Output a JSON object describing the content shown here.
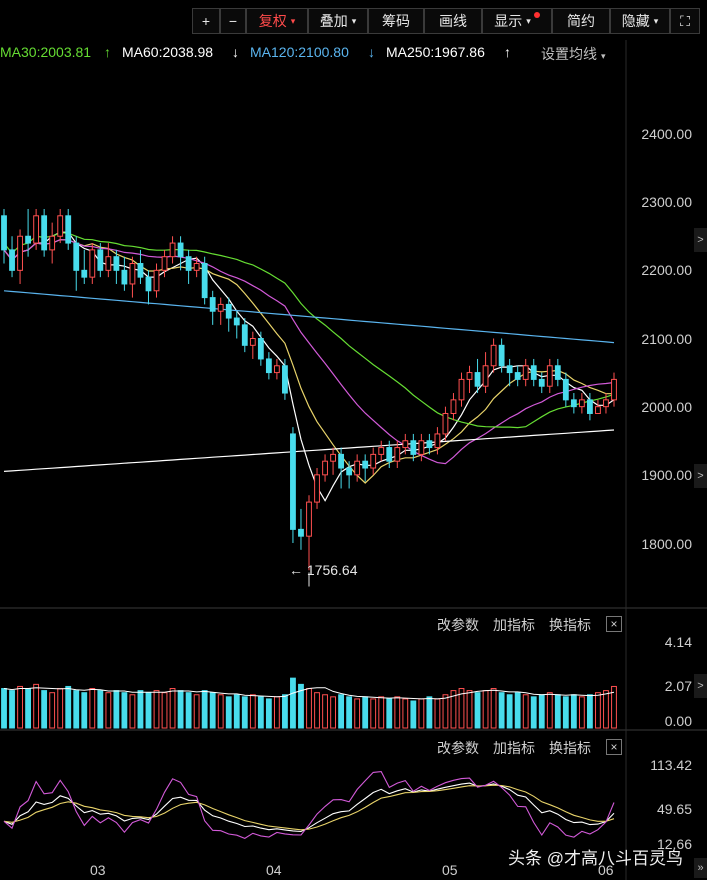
{
  "toolbar": {
    "zoom_in": "+",
    "zoom_out": "−",
    "fuquan": "复权",
    "diejia": "叠加",
    "chouma": "筹码",
    "huaxian": "画线",
    "xianshi": "显示",
    "jianyue": "简约",
    "yincang": "隐藏",
    "fullscreen": "⛶",
    "active_color": "#ff4b4b",
    "caret": "▾"
  },
  "ma_legend": {
    "ma30": "MA30:2003.81",
    "ma30_arrow": "↑",
    "ma60": "MA60:2038.98",
    "ma60_arrow": "↓",
    "ma120": "MA120:2100.80",
    "ma120_arrow": "↓",
    "ma250": "MA250:1967.86",
    "ma250_arrow": "↑",
    "settings": "设置均线",
    "colors": {
      "ma30": "#66dd33",
      "ma60": "#ffffff",
      "ma120": "#5ab4ee",
      "ma250": "#ffffff"
    }
  },
  "price_axis": [
    "2400.00",
    "2300.00",
    "2200.00",
    "2100.00",
    "2000.00",
    "1900.00",
    "1800.00"
  ],
  "low_label": "1756.64",
  "volume_panel": {
    "btn_params": "改参数",
    "btn_add": "加指标",
    "btn_switch": "换指标",
    "close": "×",
    "axis": [
      "4.14",
      "2.07",
      "0.00"
    ]
  },
  "indicator_panel": {
    "btn_params": "改参数",
    "btn_add": "加指标",
    "btn_switch": "换指标",
    "close": "×",
    "axis": [
      "113.42",
      "49.65",
      "12.66"
    ]
  },
  "months": [
    "03",
    "04",
    "05",
    "06"
  ],
  "watermark": "头条 @才高八斗百灵鸟",
  "side_arrows": {
    "main": ">",
    "volume": ">",
    "bottom": "»"
  },
  "chart_data": {
    "type": "candlestick",
    "price_range": [
      1700,
      2450
    ],
    "low_marker": 1756.64,
    "up_color": "#ff5050",
    "down_color": "#48dcec",
    "candles": [
      [
        2280,
        2230,
        2290,
        2210
      ],
      [
        2230,
        2200,
        2250,
        2190
      ],
      [
        2200,
        2250,
        2260,
        2180
      ],
      [
        2250,
        2240,
        2290,
        2220
      ],
      [
        2240,
        2280,
        2290,
        2230
      ],
      [
        2280,
        2230,
        2290,
        2220
      ],
      [
        2230,
        2250,
        2270,
        2210
      ],
      [
        2250,
        2280,
        2290,
        2240
      ],
      [
        2280,
        2240,
        2290,
        2230
      ],
      [
        2240,
        2200,
        2250,
        2170
      ],
      [
        2200,
        2190,
        2230,
        2180
      ],
      [
        2190,
        2230,
        2240,
        2180
      ],
      [
        2230,
        2200,
        2240,
        2190
      ],
      [
        2200,
        2220,
        2240,
        2190
      ],
      [
        2220,
        2200,
        2230,
        2180
      ],
      [
        2200,
        2180,
        2220,
        2170
      ],
      [
        2180,
        2210,
        2220,
        2160
      ],
      [
        2210,
        2190,
        2230,
        2180
      ],
      [
        2190,
        2170,
        2200,
        2150
      ],
      [
        2170,
        2200,
        2210,
        2160
      ],
      [
        2200,
        2220,
        2230,
        2190
      ],
      [
        2220,
        2240,
        2250,
        2210
      ],
      [
        2240,
        2220,
        2250,
        2200
      ],
      [
        2220,
        2200,
        2230,
        2180
      ],
      [
        2200,
        2210,
        2220,
        2190
      ],
      [
        2210,
        2160,
        2220,
        2150
      ],
      [
        2160,
        2140,
        2170,
        2120
      ],
      [
        2140,
        2150,
        2160,
        2120
      ],
      [
        2150,
        2130,
        2160,
        2110
      ],
      [
        2130,
        2120,
        2140,
        2100
      ],
      [
        2120,
        2090,
        2130,
        2080
      ],
      [
        2090,
        2100,
        2110,
        2070
      ],
      [
        2100,
        2070,
        2110,
        2060
      ],
      [
        2070,
        2050,
        2080,
        2040
      ],
      [
        2050,
        2060,
        2070,
        2040
      ],
      [
        2060,
        2020,
        2070,
        2010
      ],
      [
        1960,
        1820,
        1970,
        1800
      ],
      [
        1820,
        1810,
        1850,
        1790
      ],
      [
        1810,
        1860,
        1870,
        1760
      ],
      [
        1860,
        1900,
        1910,
        1850
      ],
      [
        1900,
        1920,
        1930,
        1890
      ],
      [
        1920,
        1930,
        1940,
        1900
      ],
      [
        1930,
        1910,
        1940,
        1880
      ],
      [
        1910,
        1900,
        1920,
        1880
      ],
      [
        1900,
        1920,
        1930,
        1890
      ],
      [
        1920,
        1910,
        1930,
        1890
      ],
      [
        1910,
        1930,
        1940,
        1900
      ],
      [
        1930,
        1940,
        1950,
        1920
      ],
      [
        1940,
        1920,
        1950,
        1910
      ],
      [
        1920,
        1940,
        1950,
        1910
      ],
      [
        1940,
        1950,
        1960,
        1930
      ],
      [
        1950,
        1930,
        1960,
        1920
      ],
      [
        1930,
        1950,
        1960,
        1920
      ],
      [
        1950,
        1940,
        1960,
        1930
      ],
      [
        1940,
        1960,
        1970,
        1930
      ],
      [
        1960,
        1990,
        2000,
        1950
      ],
      [
        1990,
        2010,
        2020,
        1980
      ],
      [
        2010,
        2040,
        2050,
        2000
      ],
      [
        2040,
        2050,
        2060,
        2020
      ],
      [
        2050,
        2030,
        2070,
        2020
      ],
      [
        2030,
        2060,
        2080,
        2020
      ],
      [
        2060,
        2090,
        2100,
        2050
      ],
      [
        2090,
        2060,
        2100,
        2050
      ],
      [
        2060,
        2050,
        2070,
        2030
      ],
      [
        2050,
        2040,
        2060,
        2030
      ],
      [
        2040,
        2060,
        2070,
        2030
      ],
      [
        2060,
        2040,
        2070,
        2030
      ],
      [
        2040,
        2030,
        2050,
        2020
      ],
      [
        2030,
        2060,
        2070,
        2020
      ],
      [
        2060,
        2040,
        2070,
        2030
      ],
      [
        2040,
        2010,
        2050,
        2000
      ],
      [
        2010,
        2000,
        2020,
        1990
      ],
      [
        2000,
        2010,
        2020,
        1990
      ],
      [
        2010,
        1990,
        2020,
        1980
      ],
      [
        1990,
        2000,
        2010,
        1990
      ],
      [
        2000,
        2010,
        2020,
        1990
      ],
      [
        2010,
        2040,
        2050,
        2000
      ]
    ],
    "volumes": [
      1.9,
      1.8,
      2.0,
      1.9,
      2.1,
      1.8,
      1.7,
      1.9,
      2.0,
      1.8,
      1.7,
      1.9,
      1.8,
      1.7,
      1.8,
      1.7,
      1.6,
      1.8,
      1.7,
      1.8,
      1.7,
      1.9,
      1.8,
      1.7,
      1.6,
      1.8,
      1.7,
      1.6,
      1.5,
      1.6,
      1.5,
      1.6,
      1.5,
      1.4,
      1.5,
      1.6,
      2.4,
      2.1,
      1.9,
      1.7,
      1.6,
      1.5,
      1.6,
      1.5,
      1.4,
      1.5,
      1.4,
      1.5,
      1.4,
      1.5,
      1.4,
      1.3,
      1.4,
      1.5,
      1.4,
      1.6,
      1.8,
      1.9,
      1.8,
      1.7,
      1.8,
      1.9,
      1.7,
      1.6,
      1.7,
      1.6,
      1.5,
      1.6,
      1.7,
      1.6,
      1.5,
      1.6,
      1.5,
      1.6,
      1.7,
      1.8,
      2.0
    ]
  }
}
